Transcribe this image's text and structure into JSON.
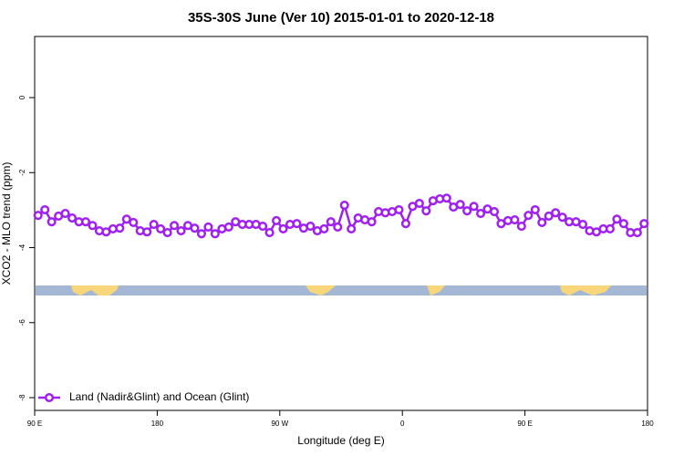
{
  "chart_data": {
    "type": "line",
    "title": "35S-30S June (Ver 10)   2015-01-01 to 2020-12-18",
    "xlabel": "Longitude (deg E)",
    "ylabel": "XCO2 - MLO trend (ppm)",
    "xlim": [
      90,
      540
    ],
    "xticks": [
      {
        "value": 90,
        "label": "90 E"
      },
      180,
      {
        "value": 270,
        "label": "90 W"
      },
      {
        "value": 360,
        "label": "0"
      },
      {
        "value": 450,
        "label": "90 E"
      },
      {
        "value": 540,
        "label": "180"
      }
    ],
    "ylim": [
      -8.34,
      1.63
    ],
    "yticks": [
      0,
      -2,
      -4,
      -6,
      -8
    ],
    "legend": "bottom-left",
    "x": [
      92.5,
      97.5,
      102.5,
      107.5,
      112.5,
      117.5,
      122.5,
      127.5,
      132.5,
      137.5,
      142.5,
      147.5,
      152.5,
      157.5,
      162.5,
      167.5,
      172.5,
      177.5,
      182.5,
      187.5,
      192.5,
      197.5,
      202.5,
      207.5,
      212.5,
      217.5,
      222.5,
      227.5,
      232.5,
      237.5,
      242.5,
      247.5,
      252.5,
      257.5,
      262.5,
      267.5,
      272.5,
      277.5,
      282.5,
      287.5,
      292.5,
      297.5,
      302.5,
      307.5,
      312.5,
      317.5,
      322.5,
      327.5,
      332.5,
      337.5,
      342.5,
      347.5,
      352.5,
      357.5,
      362.5,
      367.5,
      372.5,
      377.5,
      382.5,
      387.5,
      392.5,
      397.5,
      402.5,
      407.5,
      412.5,
      417.5,
      422.5,
      427.5,
      432.5,
      437.5,
      442.5,
      447.5,
      452.5,
      457.5,
      462.5,
      467.5,
      472.5,
      477.5,
      482.5,
      487.5,
      492.5,
      497.5,
      502.5,
      507.5,
      512.5,
      517.5,
      522.5,
      527.5,
      532.5,
      537.5
    ],
    "series": [
      {
        "name": "Land (Nadir&Glint) and Ocean (Glint)",
        "color": "#a020f0",
        "values": [
          -3.14,
          -2.99,
          -3.31,
          -3.16,
          -3.09,
          -3.21,
          -3.31,
          -3.31,
          -3.41,
          -3.55,
          -3.58,
          -3.5,
          -3.48,
          -3.24,
          -3.33,
          -3.55,
          -3.58,
          -3.38,
          -3.5,
          -3.6,
          -3.41,
          -3.55,
          -3.41,
          -3.48,
          -3.63,
          -3.45,
          -3.63,
          -3.5,
          -3.45,
          -3.31,
          -3.38,
          -3.38,
          -3.38,
          -3.43,
          -3.6,
          -3.28,
          -3.5,
          -3.38,
          -3.36,
          -3.48,
          -3.43,
          -3.55,
          -3.5,
          -3.31,
          -3.45,
          -2.87,
          -3.5,
          -3.21,
          -3.26,
          -3.31,
          -3.04,
          -3.07,
          -3.04,
          -2.99,
          -3.36,
          -2.9,
          -2.82,
          -3.02,
          -2.75,
          -2.7,
          -2.68,
          -2.92,
          -2.85,
          -3.02,
          -2.9,
          -3.09,
          -2.97,
          -3.04,
          -3.36,
          -3.28,
          -3.26,
          -3.43,
          -3.14,
          -2.99,
          -3.33,
          -3.16,
          -3.07,
          -3.19,
          -3.31,
          -3.31,
          -3.38,
          -3.55,
          -3.58,
          -3.5,
          -3.5,
          -3.24,
          -3.36,
          -3.6,
          -3.6,
          -3.36
        ]
      }
    ]
  }
}
